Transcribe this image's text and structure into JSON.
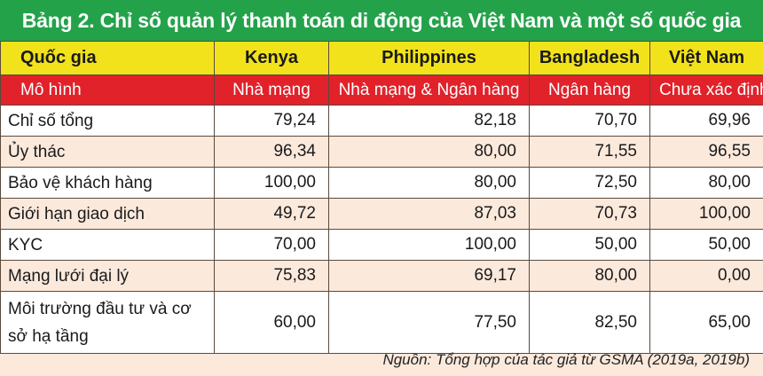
{
  "title": "Bảng 2. Chỉ số quản lý thanh toán di động của Việt Nam và một số quốc gia",
  "header": [
    "Quốc gia",
    "Kenya",
    "Philippines",
    "Bangladesh",
    "Việt Nam"
  ],
  "model_row": [
    "Mô hình",
    "Nhà mạng",
    "Nhà mạng & Ngân hàng",
    "Ngân hàng",
    "Chưa xác định"
  ],
  "rows": [
    [
      "Chỉ số tổng",
      "79,24",
      "82,18",
      "70,70",
      "69,96"
    ],
    [
      "Ủy thác",
      "96,34",
      "80,00",
      "71,55",
      "96,55"
    ],
    [
      "Bảo vệ khách hàng",
      "100,00",
      "80,00",
      "72,50",
      "80,00"
    ],
    [
      "Giới hạn giao dịch",
      "49,72",
      "87,03",
      "70,73",
      "100,00"
    ],
    [
      "KYC",
      "70,00",
      "100,00",
      "50,00",
      "50,00"
    ],
    [
      "Mạng lưới đại lý",
      "75,83",
      "69,17",
      "80,00",
      "0,00"
    ],
    [
      "Môi trường đầu tư và cơ sở hạ tầng",
      "60,00",
      "77,50",
      "82,50",
      "65,00"
    ]
  ],
  "source": "Nguồn: Tổng hợp của tác giả từ GSMA (2019a, 2019b)",
  "colors": {
    "title_bg": "#23a24a",
    "header_bg": "#f2e21b",
    "model_bg": "#e1222a",
    "stripe_bg": "#fbe9dc"
  }
}
